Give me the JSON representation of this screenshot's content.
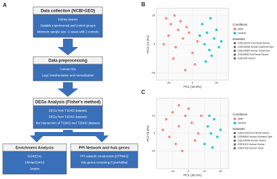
{
  "panels": {
    "a": "A",
    "b": "B",
    "c": "C"
  },
  "flowchart": {
    "steps": [
      {
        "title": "Data collection (NCBI-GEO)",
        "items": [
          "Kidney tissues",
          "Suitable experimental and control groups",
          "Minimum sample size :2 cases with 2 controls"
        ]
      },
      {
        "title": "Data preprocessing",
        "items": [
          "Convert IDs",
          "Log2 transformation and normalization"
        ]
      },
      {
        "title": "DEGs Analysis (Fisher's method)",
        "items": [
          "DEGs from T1DKD datasets",
          "DEGs from T2DKD datasets",
          "the intersection of T1DKD and T2DKD datasets"
        ]
      },
      {
        "title": "Enrichment Analysis",
        "items": [
          "GO/KEGG",
          "ClinVar/GWAS",
          "Jaspas"
        ]
      },
      {
        "title": "PPI Network and hub genes",
        "items": [
          "PPI network construction (STRING)",
          "Hub genes screening (CytoHubba)"
        ]
      }
    ]
  },
  "chart_data": [
    {
      "type": "scatter",
      "x_label": "PC1 (18.3%)",
      "y_label": "PC2 (11.3%)",
      "xlim": [
        -30,
        30
      ],
      "ylim": [
        -25,
        25
      ],
      "xticks": [
        -20,
        0,
        20
      ],
      "yticks": [
        -20,
        0,
        20
      ],
      "grid": true,
      "legend_title": "Conditions",
      "datasets_title": "Datasets",
      "datasets": [
        "GSE142025 Pool Renal Glomer",
        "GSE104948 Human Glomeruli Sym",
        "GSE104954 Human Tubuli Sym",
        "GSE30528 Pool Renal Glomer",
        "GSE1009 Glomer"
      ],
      "series": [
        {
          "name": "case",
          "color": "#F8766D",
          "x": [
            -22,
            -18,
            -15,
            -12,
            -20,
            -10,
            -8,
            -5,
            -14,
            -3,
            0,
            4,
            -16,
            -24,
            2,
            -6
          ],
          "y": [
            18,
            14,
            20,
            10,
            6,
            16,
            4,
            12,
            -2,
            8,
            -6,
            2,
            -10,
            0,
            -14,
            -18
          ]
        },
        {
          "name": "control",
          "color": "#00BFC4",
          "x": [
            8,
            12,
            15,
            18,
            10,
            14,
            20,
            22,
            16,
            6,
            24,
            11
          ],
          "y": [
            14,
            8,
            18,
            4,
            0,
            -4,
            10,
            -2,
            -8,
            6,
            2,
            -12
          ]
        }
      ]
    },
    {
      "type": "scatter",
      "x_label": "PC1 (20.1%)",
      "y_label": "PC2 (9.6%)",
      "xlim": [
        -20,
        25
      ],
      "ylim": [
        -20,
        20
      ],
      "xticks": [
        -10,
        0,
        10,
        20
      ],
      "yticks": [
        -10,
        0,
        10
      ],
      "grid": true,
      "legend_title": "Conditions",
      "datasets_title": "Datasets",
      "datasets": [
        "GSE111154 Pool Renal Glomer",
        "GSE96804 Human Glomeruli Sym",
        "GSE104948 Human Glomer",
        "GSE30122 Human Glomer",
        "GSE47183 Human Tubuli"
      ],
      "series": [
        {
          "name": "case",
          "color": "#F8766D",
          "x": [
            -14,
            -10,
            -6,
            -2,
            2,
            -12,
            -8,
            4,
            0,
            -4,
            6,
            -16,
            8,
            -6
          ],
          "y": [
            8,
            12,
            4,
            10,
            6,
            -2,
            -6,
            -4,
            14,
            -10,
            0,
            2,
            10,
            16
          ]
        },
        {
          "name": "control",
          "color": "#00BFC4",
          "x": [
            12,
            14,
            16,
            18,
            10,
            20,
            15,
            13
          ],
          "y": [
            4,
            0,
            8,
            -2,
            -6,
            2,
            -8,
            10
          ]
        }
      ]
    }
  ]
}
